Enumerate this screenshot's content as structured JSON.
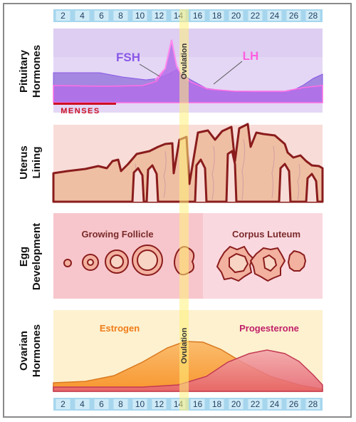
{
  "days": [
    "2",
    "4",
    "6",
    "8",
    "10",
    "12",
    "14",
    "16",
    "18",
    "20",
    "22",
    "24",
    "26",
    "28"
  ],
  "rows": [
    {
      "line1": "Pituitary",
      "line2": "Hormones"
    },
    {
      "line1": "Uterus",
      "line2": "Lining"
    },
    {
      "line1": "Egg",
      "line2": "Development"
    },
    {
      "line1": "Ovarian",
      "line2": "Hormones"
    }
  ],
  "pituitary": {
    "fsh_label": "FSH",
    "lh_label": "LH",
    "menses_label": "MENSES"
  },
  "ovulation_label": "Ovulation",
  "egg": {
    "growing_label": "Growing Follicle",
    "luteum_label": "Corpus Luteum"
  },
  "ovarian": {
    "estrogen_label": "Estrogen",
    "progesterone_label": "Progesterone"
  },
  "colors": {
    "day_bar": "#9fd3ec",
    "ovulation_band": "#fff07a",
    "fsh": "#8a58e8",
    "lh": "#ff6ee6",
    "menses": "#cc1122",
    "uterus_line": "#8a1c1c",
    "estrogen": "#f7962f",
    "progesterone": "#e04a6a"
  }
}
